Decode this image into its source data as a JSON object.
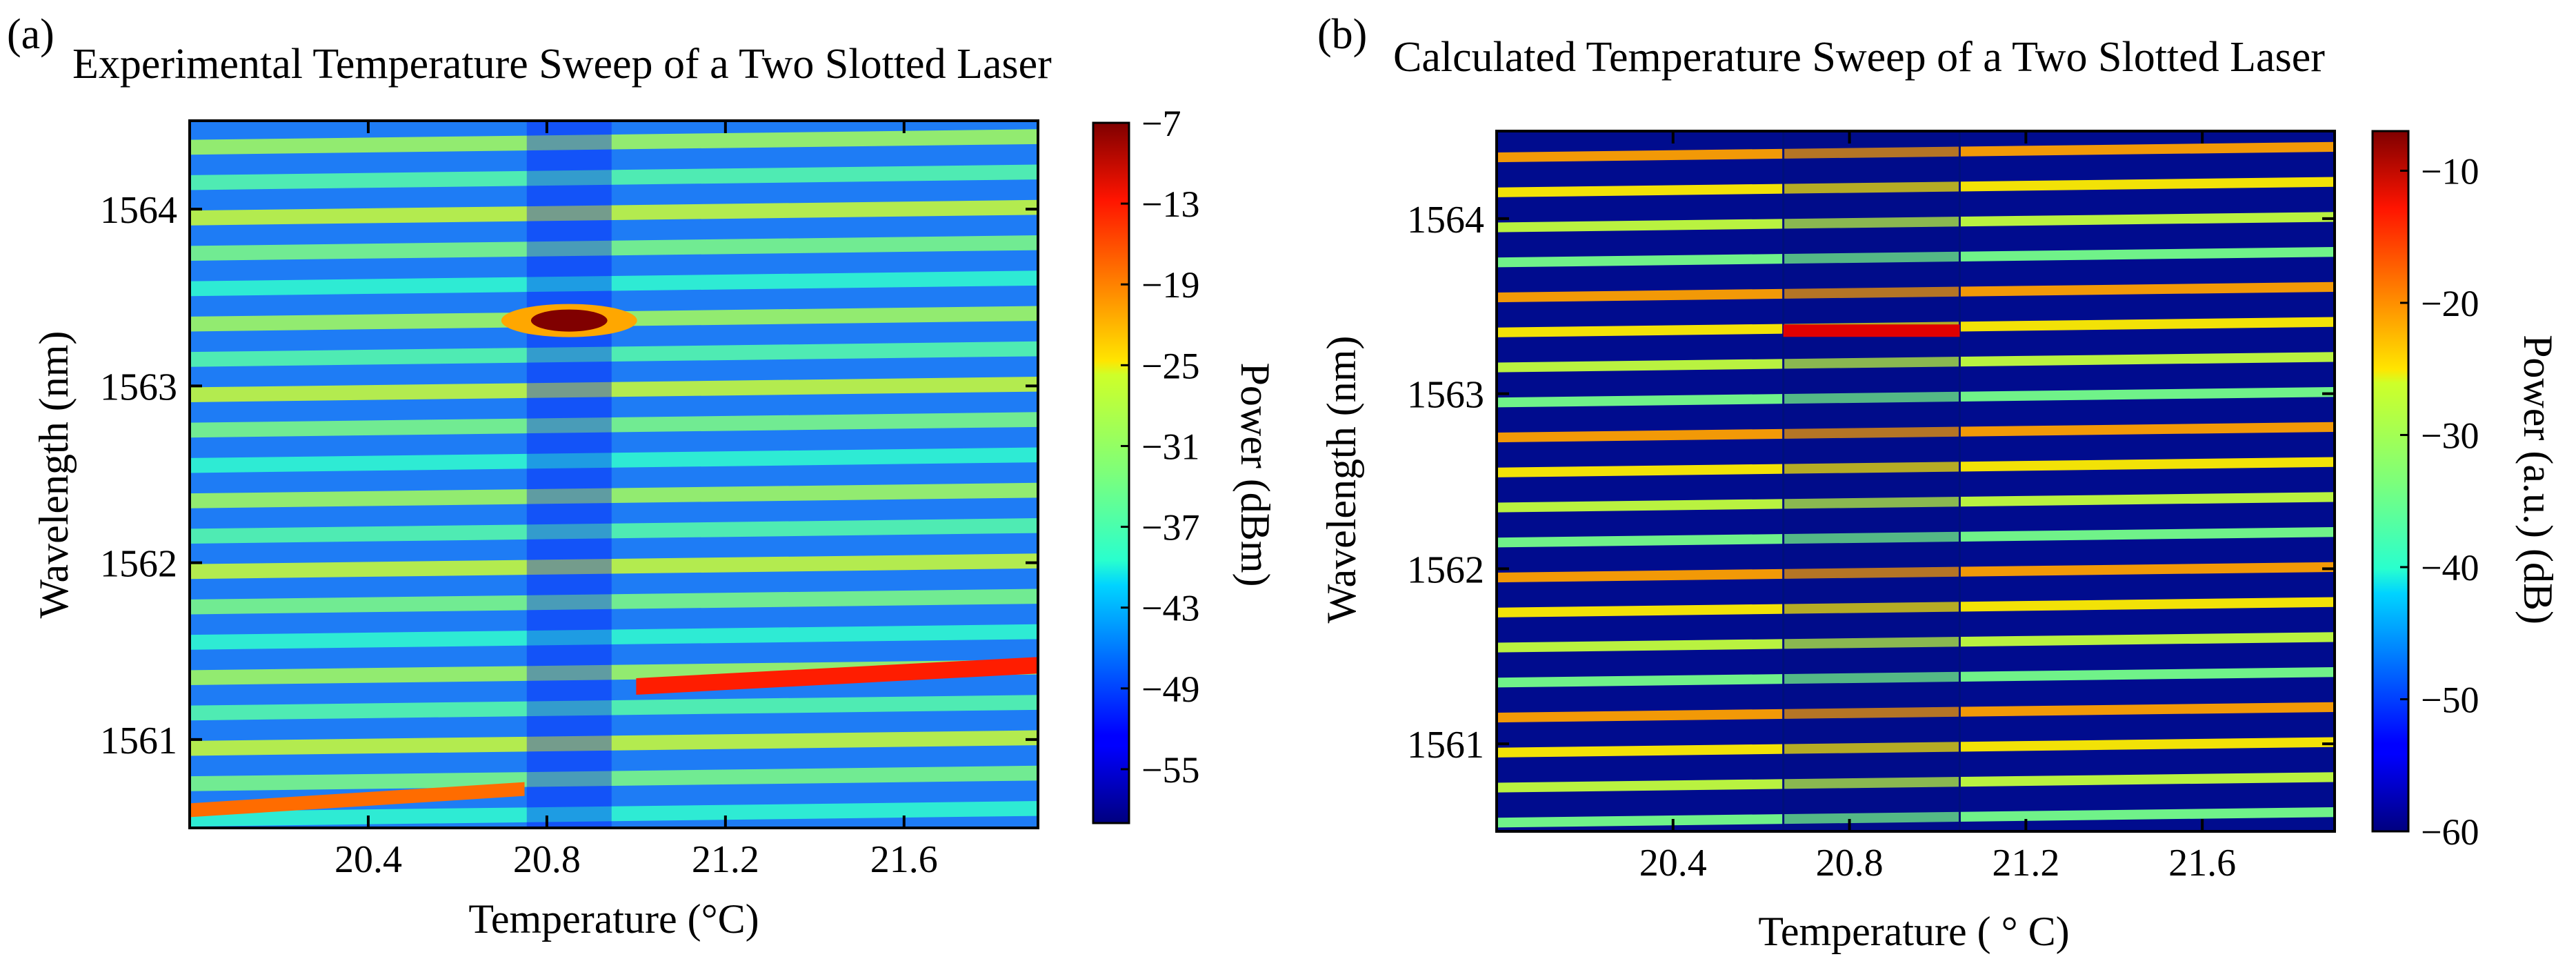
{
  "chart_data": [
    {
      "type": "heatmap",
      "panel_label": "(a)",
      "title_prefix": "Experimental",
      "title": "Temperature Sweep of a Two Slotted Laser",
      "xlabel": "Temperature (°C)",
      "ylabel": "Wavelength (nm)",
      "xlim": [
        20.0,
        21.9
      ],
      "ylim": [
        1560.5,
        1564.5
      ],
      "xticks": [
        20.4,
        20.8,
        21.2,
        21.6
      ],
      "xtick_labels": [
        "20.4",
        "20.8",
        "21.2",
        "21.6"
      ],
      "yticks": [
        1561,
        1562,
        1563,
        1564
      ],
      "ytick_labels": [
        "1561",
        "1562",
        "1563",
        "1564"
      ],
      "colorbar": {
        "label": "Power (dBm)",
        "range": [
          -59,
          -7
        ],
        "ticks": [
          -7,
          -13,
          -19,
          -25,
          -31,
          -37,
          -43,
          -49,
          -55
        ],
        "tick_labels": [
          "−7",
          "−13",
          "−19",
          "−25",
          "−31",
          "−37",
          "−43",
          "−49",
          "−55"
        ]
      },
      "features": {
        "mode_spacing_nm": 0.2,
        "background_dBm": -45,
        "dip_temperature_C": 20.85,
        "lasing_peak": {
          "temperature_C": 20.85,
          "wavelength_nm": 1563.37,
          "power_dBm": -7
        },
        "strong_mode_high_T": {
          "temperature_range_C": [
            21.0,
            21.9
          ],
          "wavelength_nm": [
            1561.3,
            1561.42
          ],
          "power_dBm": -15
        },
        "mode_low_T": {
          "temperature_range_C": [
            20.0,
            20.75
          ],
          "wavelength_nm": [
            1560.6,
            1560.72
          ],
          "power_dBm": -19
        }
      }
    },
    {
      "type": "heatmap",
      "panel_label": "(b)",
      "title": "Calculated Temperature Sweep of a Two Slotted Laser",
      "xlabel": "Temperature ( ° C)",
      "ylabel": "Wavelength (nm)",
      "xlim": [
        20.0,
        21.9
      ],
      "ylim": [
        1560.5,
        1564.5
      ],
      "xticks": [
        20.4,
        20.8,
        21.2,
        21.6
      ],
      "xtick_labels": [
        "20.4",
        "20.8",
        "21.2",
        "21.6"
      ],
      "yticks": [
        1561,
        1562,
        1563,
        1564
      ],
      "ytick_labels": [
        "1561",
        "1562",
        "1563",
        "1564"
      ],
      "colorbar": {
        "label": "Power (a.u.) (dB)",
        "range": [
          -60,
          -7
        ],
        "ticks": [
          -10,
          -20,
          -30,
          -40,
          -50,
          -60
        ],
        "tick_labels": [
          "−10",
          "−20",
          "−30",
          "−40",
          "−50",
          "−60"
        ]
      },
      "features": {
        "mode_spacing_nm": 0.2,
        "background_dB": -60,
        "segment_boundaries_C": [
          20.65,
          21.05
        ],
        "lasing_peak": {
          "temperature_range_C": [
            20.65,
            21.05
          ],
          "wavelength_nm": 1563.36,
          "power_dB": -12
        }
      }
    }
  ]
}
